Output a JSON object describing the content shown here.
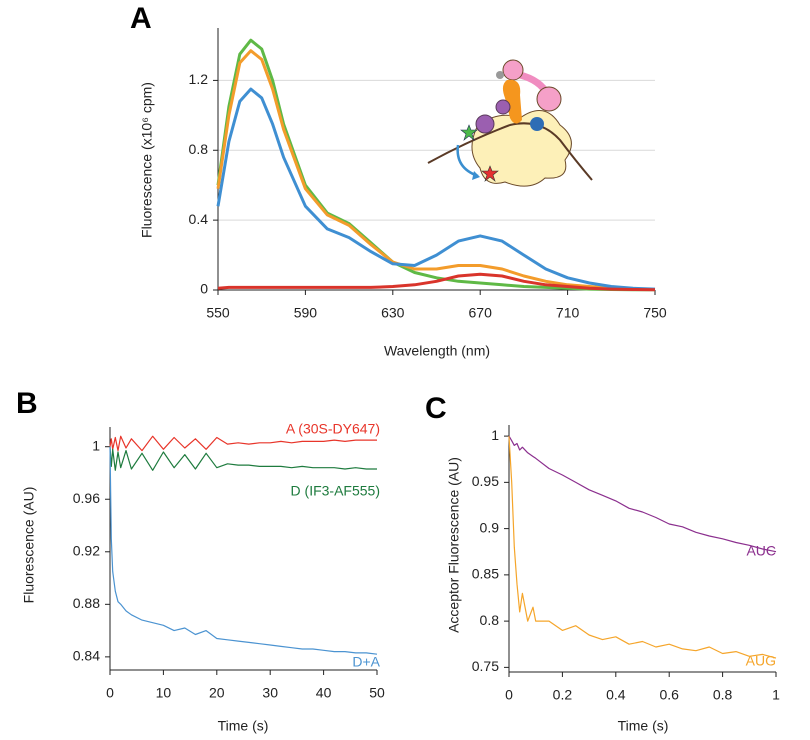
{
  "chart_data": [
    {
      "type": "line",
      "panel_label": "A",
      "x_label": "Wavelength (nm)",
      "y_label": "Fluorescence (x10⁶ cpm)",
      "x": [
        550,
        555,
        560,
        565,
        570,
        575,
        580,
        590,
        600,
        610,
        620,
        630,
        640,
        650,
        660,
        670,
        680,
        690,
        700,
        710,
        720,
        730,
        740,
        750
      ],
      "xlim": [
        550,
        750
      ],
      "xticks": [
        550,
        590,
        630,
        670,
        710,
        750
      ],
      "ylim": [
        0,
        1.5
      ],
      "yticks": [
        0,
        0.4,
        0.8,
        1.2
      ],
      "grid": true,
      "series": [
        {
          "color": "#5fb946",
          "values": [
            0.6,
            1.05,
            1.35,
            1.43,
            1.38,
            1.2,
            0.95,
            0.6,
            0.44,
            0.38,
            0.27,
            0.16,
            0.1,
            0.07,
            0.05,
            0.04,
            0.03,
            0.02,
            0.015,
            0.01,
            0.005,
            0.003,
            0.002,
            0.001
          ]
        },
        {
          "color": "#f39c2b",
          "values": [
            0.58,
            1.0,
            1.3,
            1.37,
            1.32,
            1.15,
            0.92,
            0.58,
            0.43,
            0.37,
            0.26,
            0.16,
            0.12,
            0.12,
            0.14,
            0.14,
            0.12,
            0.08,
            0.05,
            0.03,
            0.02,
            0.01,
            0.005,
            0.003
          ]
        },
        {
          "color": "#3f8fd2",
          "values": [
            0.48,
            0.85,
            1.08,
            1.15,
            1.1,
            0.95,
            0.76,
            0.48,
            0.35,
            0.3,
            0.22,
            0.15,
            0.14,
            0.2,
            0.28,
            0.31,
            0.28,
            0.2,
            0.12,
            0.07,
            0.04,
            0.02,
            0.01,
            0.005
          ]
        },
        {
          "color": "#d9342b",
          "values": [
            0.01,
            0.015,
            0.015,
            0.015,
            0.015,
            0.015,
            0.015,
            0.015,
            0.015,
            0.015,
            0.015,
            0.02,
            0.03,
            0.05,
            0.08,
            0.09,
            0.08,
            0.05,
            0.03,
            0.02,
            0.01,
            0.005,
            0.003,
            0.002
          ]
        }
      ]
    },
    {
      "type": "line",
      "panel_label": "B",
      "x_label": "Time (s)",
      "y_label": "Fluorescence (AU)",
      "x": [
        0,
        0.25,
        0.5,
        1,
        1.5,
        2,
        3,
        4,
        6,
        8,
        10,
        12,
        14,
        16,
        18,
        20,
        22,
        24,
        26,
        28,
        30,
        32,
        34,
        36,
        38,
        40,
        42,
        44,
        46,
        48,
        50
      ],
      "xlim": [
        0,
        50
      ],
      "xticks": [
        0,
        10,
        20,
        30,
        40,
        50
      ],
      "ylim": [
        0.83,
        1.015
      ],
      "yticks": [
        0.84,
        0.88,
        0.92,
        0.96,
        1
      ],
      "grid": false,
      "series": [
        {
          "name": "A (30S-DY647)",
          "color": "#e8352a",
          "values": [
            1.0,
            1.006,
            0.998,
            1.007,
            0.997,
            1.008,
            0.999,
            1.006,
            0.997,
            1.008,
            0.998,
            1.007,
            0.999,
            1.006,
            0.998,
            1.007,
            1.002,
            1.003,
            1.002,
            1.003,
            1.003,
            1.004,
            1.003,
            1.004,
            1.004,
            1.004,
            1.005,
            1.004,
            1.005,
            1.005,
            1.005
          ]
        },
        {
          "name": "D (IF3-AF555)",
          "color": "#1e7b3e",
          "values": [
            1.0,
            0.985,
            0.998,
            0.982,
            0.996,
            0.984,
            0.997,
            0.983,
            0.995,
            0.982,
            0.996,
            0.984,
            0.994,
            0.983,
            0.995,
            0.984,
            0.987,
            0.986,
            0.986,
            0.985,
            0.985,
            0.985,
            0.984,
            0.985,
            0.984,
            0.984,
            0.984,
            0.983,
            0.984,
            0.983,
            0.983
          ]
        },
        {
          "name": "D+A",
          "color": "#4b93d1",
          "values": [
            1.0,
            0.93,
            0.905,
            0.89,
            0.882,
            0.88,
            0.875,
            0.872,
            0.868,
            0.866,
            0.864,
            0.86,
            0.862,
            0.857,
            0.86,
            0.854,
            0.853,
            0.852,
            0.851,
            0.85,
            0.849,
            0.848,
            0.847,
            0.846,
            0.846,
            0.845,
            0.844,
            0.844,
            0.843,
            0.843,
            0.842
          ]
        }
      ]
    },
    {
      "type": "line",
      "panel_label": "C",
      "x_label": "Time (s)",
      "y_label": "Acceptor Fluorescence (AU)",
      "x": [
        0,
        0.01,
        0.02,
        0.03,
        0.04,
        0.05,
        0.07,
        0.09,
        0.1,
        0.15,
        0.2,
        0.25,
        0.3,
        0.35,
        0.4,
        0.45,
        0.5,
        0.55,
        0.6,
        0.65,
        0.7,
        0.75,
        0.8,
        0.85,
        0.9,
        0.95,
        1
      ],
      "xlim": [
        0,
        1
      ],
      "xticks": [
        0,
        0.2,
        0.4,
        0.6,
        0.8,
        1
      ],
      "ylim": [
        0.745,
        1.012
      ],
      "yticks": [
        0.75,
        0.8,
        0.85,
        0.9,
        0.95,
        1
      ],
      "grid": false,
      "series": [
        {
          "name": "AUC",
          "color": "#8b2f8e",
          "values": [
            1.0,
            0.995,
            0.99,
            0.992,
            0.985,
            0.988,
            0.982,
            0.978,
            0.976,
            0.965,
            0.958,
            0.95,
            0.942,
            0.936,
            0.93,
            0.922,
            0.918,
            0.912,
            0.905,
            0.902,
            0.896,
            0.892,
            0.889,
            0.885,
            0.882,
            0.878,
            0.875
          ]
        },
        {
          "name": "AUG",
          "color": "#f5a52a",
          "values": [
            1.0,
            0.95,
            0.88,
            0.84,
            0.81,
            0.83,
            0.8,
            0.815,
            0.8,
            0.8,
            0.79,
            0.795,
            0.785,
            0.78,
            0.783,
            0.775,
            0.778,
            0.772,
            0.775,
            0.77,
            0.768,
            0.772,
            0.765,
            0.767,
            0.762,
            0.764,
            0.76
          ]
        }
      ]
    }
  ]
}
